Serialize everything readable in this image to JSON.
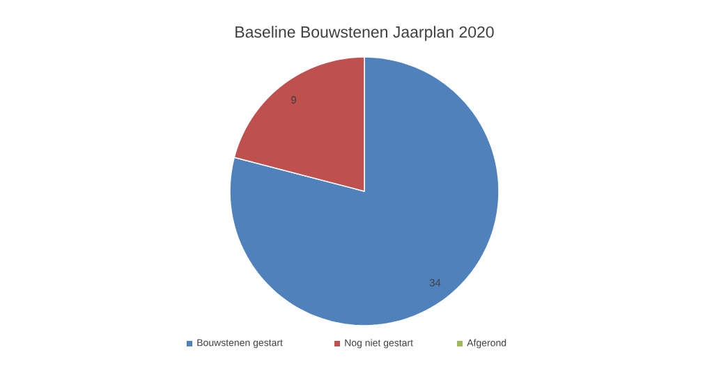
{
  "chart_data": {
    "type": "pie",
    "title": "Baseline Bouwstenen Jaarplan 2020",
    "categories": [
      "Bouwstenen gestart",
      "Nog niet gestart",
      "Afgerond"
    ],
    "values": [
      34,
      9,
      0
    ],
    "value_labels": [
      "34",
      "9",
      null
    ],
    "colors": [
      "#4f81bd",
      "#c0504d",
      "#9bbb59"
    ],
    "legend": "bottom"
  }
}
